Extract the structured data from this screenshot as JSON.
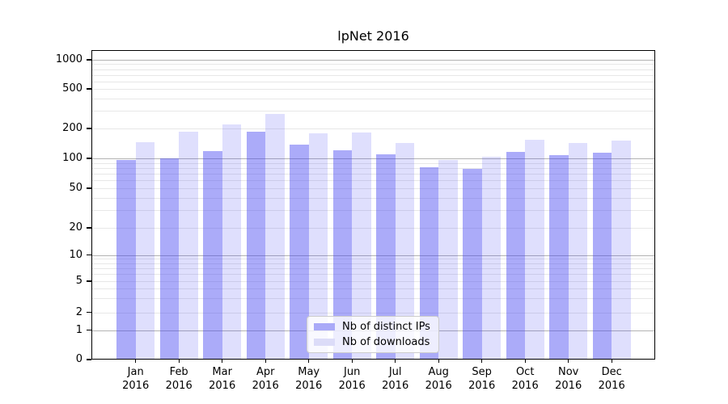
{
  "title": "lpNet 2016",
  "chart_data": {
    "type": "bar",
    "title": "lpNet 2016",
    "categories": [
      "Jan",
      "Feb",
      "Mar",
      "Apr",
      "May",
      "Jun",
      "Jul",
      "Aug",
      "Sep",
      "Oct",
      "Nov",
      "Dec"
    ],
    "x_sublabel": "2016",
    "series": [
      {
        "name": "Nb of distinct IPs",
        "color": "rgba(68,68,242,0.45)",
        "swatch": "#a9a9f8",
        "values": [
          97,
          100,
          118,
          184,
          137,
          121,
          109,
          81,
          78,
          116,
          107,
          114
        ]
      },
      {
        "name": "Nb of downloads",
        "color": "rgba(68,68,242,0.17)",
        "swatch": "#dcdcf8",
        "values": [
          146,
          185,
          218,
          278,
          180,
          181,
          144,
          96,
          103,
          154,
          142,
          152
        ]
      }
    ],
    "xlabel": "",
    "ylabel": "",
    "yscale": "log-like",
    "yticks": [
      0,
      1,
      2,
      5,
      10,
      20,
      50,
      100,
      200,
      500,
      1000
    ],
    "ylim": [
      0,
      1250
    ],
    "grid": true,
    "legend_position": "lower-center",
    "colors": {
      "grid_major": "#b3b3b3",
      "grid_minor": "#e7e7e7",
      "axis": "#000000"
    }
  },
  "legend": {
    "items": [
      {
        "label": "Nb of distinct IPs"
      },
      {
        "label": "Nb of downloads"
      }
    ]
  }
}
